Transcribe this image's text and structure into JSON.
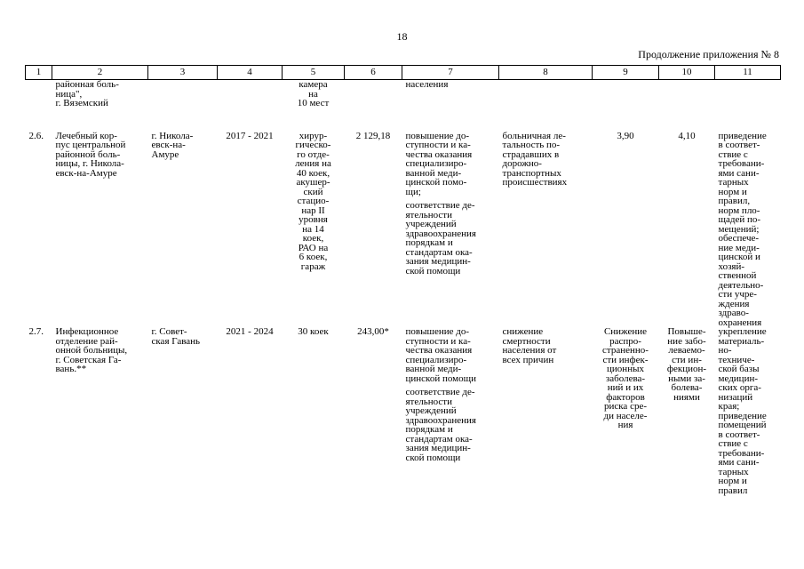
{
  "page_number": "18",
  "caption": "Продолжение приложения № 8",
  "columns": [
    "1",
    "2",
    "3",
    "4",
    "5",
    "6",
    "7",
    "8",
    "9",
    "10",
    "11"
  ],
  "continuation_row": {
    "name": "районная боль-\nница\",\nг. Вяземский",
    "capacity": "камера\nна\n10 мест",
    "goal": "населения"
  },
  "rows": [
    {
      "num": "2.6.",
      "name": "Лечебный кор-\nпус центральной\nрайонной боль-\nницы, г. Никола-\nевск-на-Амуре",
      "location": "г. Никола-\nевск-на-\nАмуре",
      "period": "2017 - 2021",
      "capacity": "хирур-\nгическо-\nго отде-\nления на\n40 коек,\nакушер-\nский\nстацио-\nнар II\nуровня\nна 14\nкоек,\nРАО на\n6 коек,\nгараж",
      "cost": "2 129,18",
      "goal1": "повышение до-\nступности и ка-\nчества оказания\nспециализиро-\nванной меди-\nцинской помо-\nщи;",
      "goal2": "соответствие де-\nятельности\nучреждений\nздравоохранения\nпорядкам и\nстандартам ока-\nзания медицин-\nской помощи",
      "indicator": "больничная ле-\nтальность по-\nстрадавших в\nдорожно-\nтранспортных\nпроисшествиях",
      "val1": "3,90",
      "val2": "4,10",
      "result": "приведение\nв соответ-\nствие с\nтребовани-\nями сани-\nтарных\nнорм и\nправил,\nнорм пло-\nщадей по-\nмещений;\nобеспече-\nние меди-\nцинской и\nхозяй-\nственной\nдеятельно-\nсти учре-\nждения\nздраво-\nохранения"
    },
    {
      "num": "2.7.",
      "name": "Инфекционное\nотделение рай-\nонной больницы,\nг. Советская Га-\nвань.**",
      "location": "г. Совет-\nская Гавань",
      "period": "2021 - 2024",
      "capacity": "30 коек",
      "cost": "243,00*",
      "goal1": "повышение до-\nступности и ка-\nчества оказания\nспециализиро-\nванной меди-\nцинской помощи",
      "goal2": "соответствие де-\nятельности\nучреждений\nздравоохранения\nпорядкам и\nстандартам ока-\nзания медицин-\nской помощи",
      "indicator": "снижение\nсмертности\nнаселения от\nвсех причин",
      "val1": "Снижение\nраспро-\nстраненно-\nсти инфек-\nционных\nзаболева-\nний и их\nфакторов\nриска сре-\nди населе-\nния",
      "val2": "Повыше-\nние забо-\nлеваемо-\nсти ин-\nфекцион-\nными за-\nболева-\nниями",
      "result": "укрепление\nматериаль-\nно-\nтехниче-\nской базы\nмедицин-\nских орга-\nнизаций\nкрая;\nприведение\nпомещений\nв соответ-\nствие с\nтребовани-\nями сани-\nтарных\nнорм и\nправил"
    }
  ]
}
